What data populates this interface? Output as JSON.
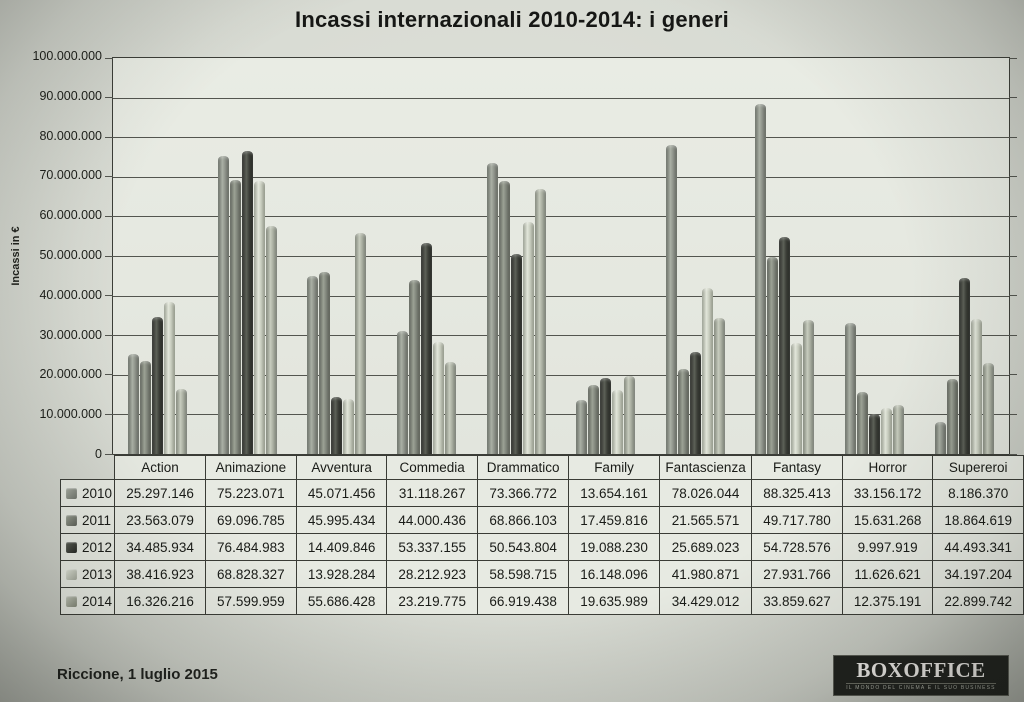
{
  "title": "Incassi internazionali 2010-2014: i generi",
  "y_axis_label": "Incassi in €",
  "footer": {
    "location_date": "Riccione, 1 luglio 2015"
  },
  "logo": {
    "name": "BOXOFFICE",
    "tagline": "IL MONDO DEL CINEMA E IL SUO BUSINESS"
  },
  "chart_data": {
    "type": "bar",
    "title": "Incassi internazionali 2010-2014: i generi",
    "xlabel": "",
    "ylabel": "Incassi in €",
    "ylim": [
      0,
      100000000
    ],
    "y_tick_step": 10000000,
    "y_tick_labels_desc": [
      "100.000.000",
      "90.000.000",
      "80.000.000",
      "70.000.000",
      "60.000.000",
      "50.000.000",
      "40.000.000",
      "30.000.000",
      "20.000.000",
      "10.000.000",
      "0"
    ],
    "grid": true,
    "legend_position": "table-rows-left",
    "categories": [
      "Action",
      "Animazione",
      "Avventura",
      "Commedia",
      "Drammatico",
      "Family",
      "Fantascienza",
      "Fantasy",
      "Horror",
      "Supereroi"
    ],
    "series": [
      {
        "name": "2010",
        "color": "#8b9087",
        "values": [
          25297146,
          75223071,
          45071456,
          31118267,
          73366772,
          13654161,
          78026044,
          88325413,
          33156172,
          8186370
        ],
        "display": [
          "25.297.146",
          "75.223.071",
          "45.071.456",
          "31.118.267",
          "73.366.772",
          "13.654.161",
          "78.026.044",
          "88.325.413",
          "33.156.172",
          "8.186.370"
        ]
      },
      {
        "name": "2011",
        "color": "#7d8279",
        "values": [
          23563079,
          69096785,
          45995434,
          44000436,
          68866103,
          17459816,
          21565571,
          49717780,
          15631268,
          18864619
        ],
        "display": [
          "23.563.079",
          "69.096.785",
          "45.995.434",
          "44.000.436",
          "68.866.103",
          "17.459.816",
          "21.565.571",
          "49.717.780",
          "15.631.268",
          "18.864.619"
        ]
      },
      {
        "name": "2012",
        "color": "#3c3f39",
        "values": [
          34485934,
          76484983,
          14409846,
          53337155,
          50543804,
          19088230,
          25689023,
          54728576,
          9997919,
          44493341
        ],
        "display": [
          "34.485.934",
          "76.484.983",
          "14.409.846",
          "53.337.155",
          "50.543.804",
          "19.088.230",
          "25.689.023",
          "54.728.576",
          "9.997.919",
          "44.493.341"
        ]
      },
      {
        "name": "2013",
        "color": "#c6cabf",
        "values": [
          38416923,
          68828327,
          13928284,
          28212923,
          58598715,
          16148096,
          41980871,
          27931766,
          11626621,
          34197204
        ],
        "display": [
          "38.416.923",
          "68.828.327",
          "13.928.284",
          "28.212.923",
          "58.598.715",
          "16.148.096",
          "41.980.871",
          "27.931.766",
          "11.626.621",
          "34.197.204"
        ]
      },
      {
        "name": "2014",
        "color": "#a8ad9f",
        "values": [
          16326216,
          57599959,
          55686428,
          23219775,
          66919438,
          19635989,
          34429012,
          33859627,
          12375191,
          22899742
        ],
        "display": [
          "16.326.216",
          "57.599.959",
          "55.686.428",
          "23.219.775",
          "66.919.438",
          "19.635.989",
          "34.429.012",
          "33.859.627",
          "12.375.191",
          "22.899.742"
        ]
      }
    ]
  }
}
